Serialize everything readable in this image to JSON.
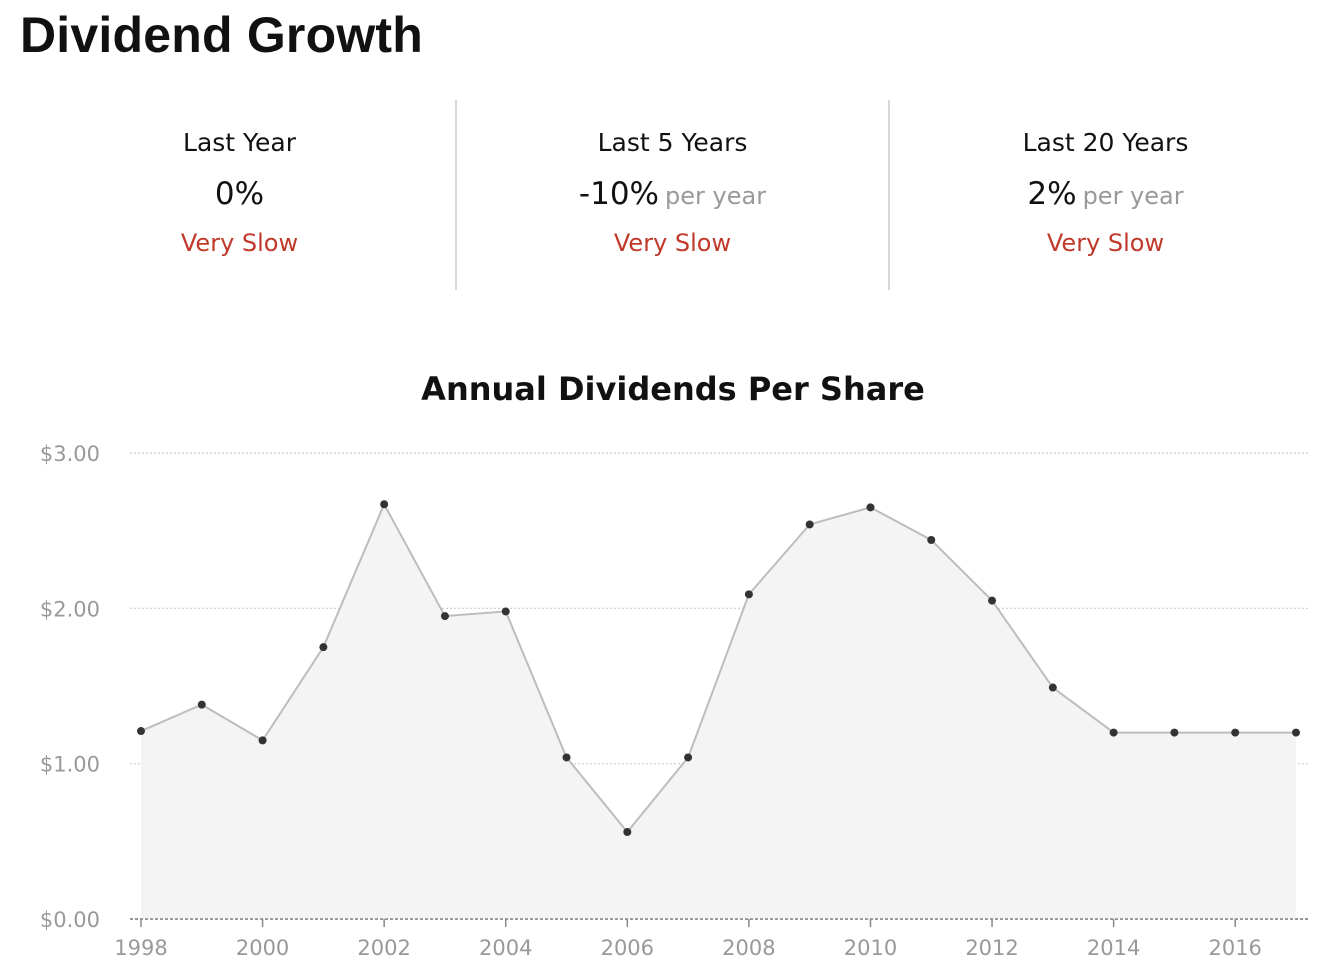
{
  "page": {
    "title": "Dividend Growth"
  },
  "stats": [
    {
      "label": "Last Year",
      "value": "0%",
      "suffix": "",
      "rating": "Very Slow"
    },
    {
      "label": "Last 5 Years",
      "value": "-10%",
      "suffix": "per year",
      "rating": "Very Slow"
    },
    {
      "label": "Last 20 Years",
      "value": "2%",
      "suffix": "per year",
      "rating": "Very Slow"
    }
  ],
  "colors": {
    "rating": "#c0392b",
    "line": "#bdbdbd",
    "area": "#f4f4f4",
    "point": "#333333",
    "axis_text": "#999999",
    "grid": "#cccccc"
  },
  "chart_data": {
    "type": "area",
    "title": "Annual Dividends Per Share",
    "xlabel": "",
    "ylabel": "",
    "x": [
      1998,
      1999,
      2000,
      2001,
      2002,
      2003,
      2004,
      2005,
      2006,
      2007,
      2008,
      2009,
      2010,
      2011,
      2012,
      2013,
      2014,
      2015,
      2016,
      2017
    ],
    "series": [
      {
        "values": [
          1.21,
          1.38,
          1.15,
          1.75,
          2.67,
          1.95,
          1.98,
          1.04,
          0.56,
          1.04,
          2.09,
          2.54,
          2.65,
          2.44,
          2.05,
          1.49,
          1.2,
          1.2,
          1.2,
          1.2
        ]
      }
    ],
    "x_ticks": [
      "1998",
      "2000",
      "2002",
      "2004",
      "2006",
      "2008",
      "2010",
      "2012",
      "2014",
      "2016"
    ],
    "y_ticks": [
      "$0.00",
      "$1.00",
      "$2.00",
      "$3.00"
    ],
    "y_tick_values": [
      0,
      1,
      2,
      3
    ],
    "ylim": [
      0,
      3
    ],
    "xlim": [
      1998,
      2017
    ],
    "grid": true,
    "legend": "none",
    "markers": true
  }
}
